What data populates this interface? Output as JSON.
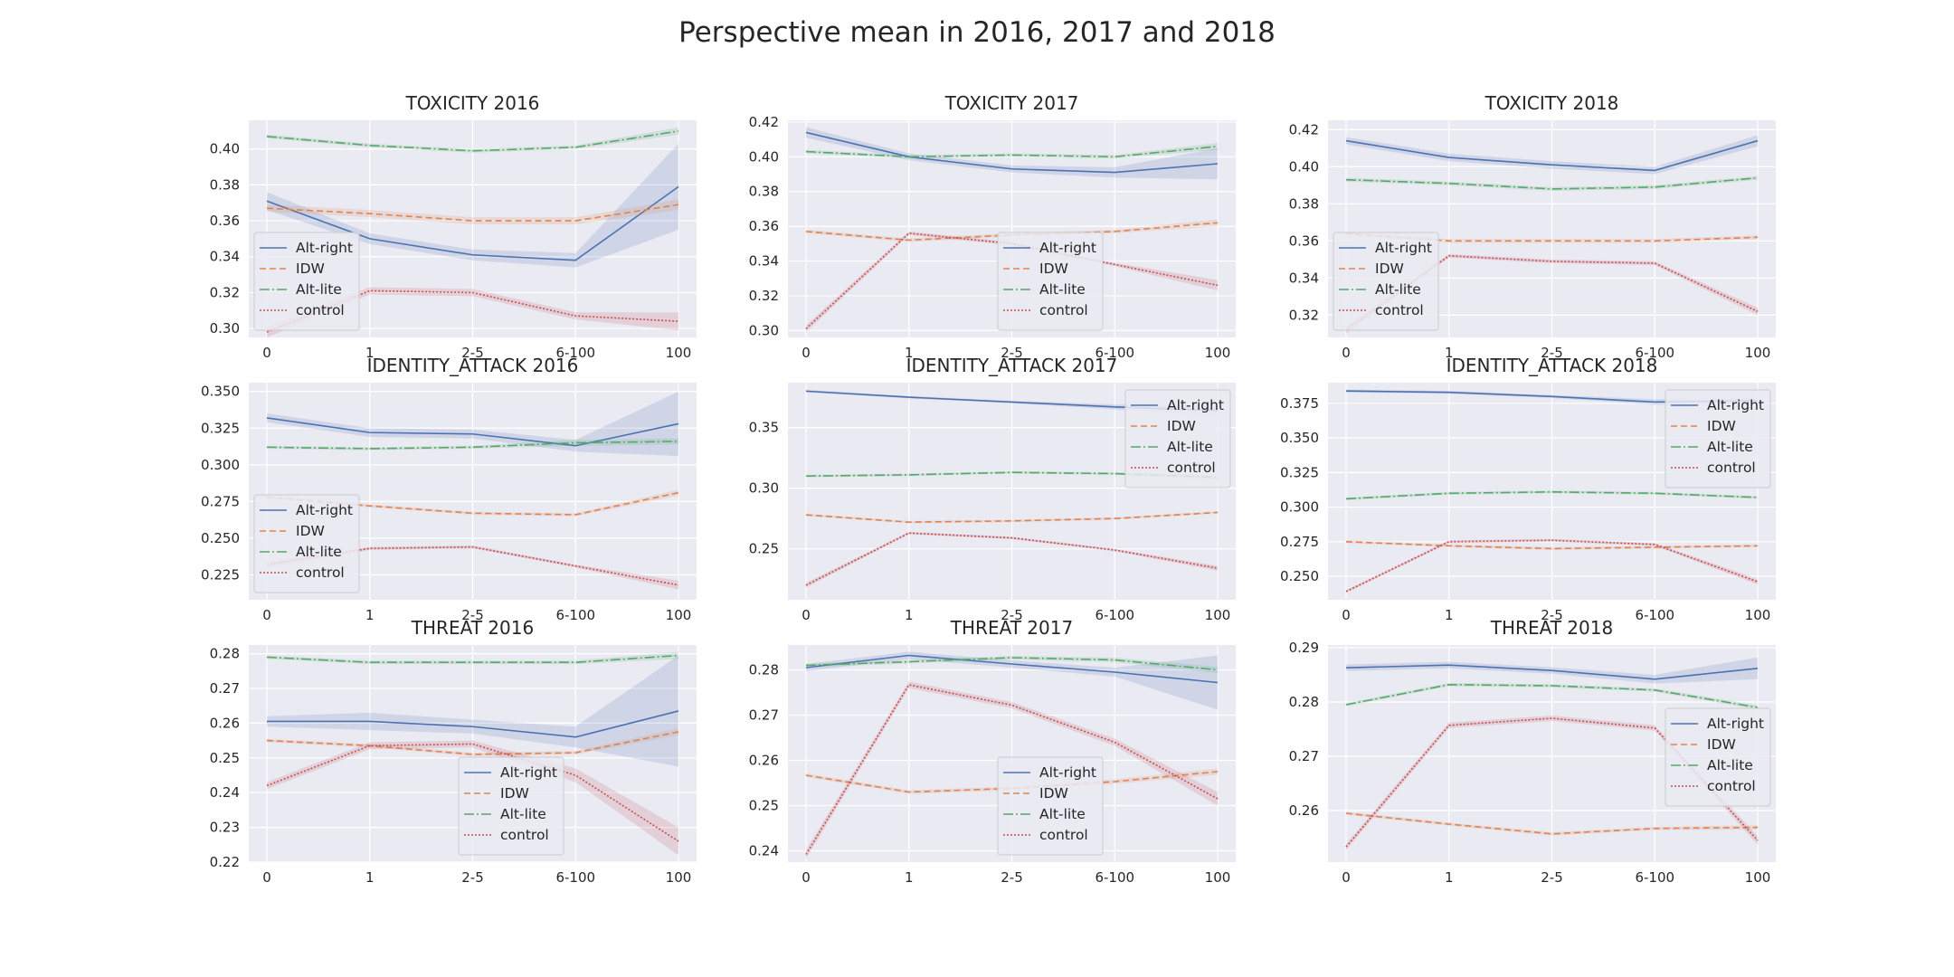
{
  "figure": {
    "title": "Perspective mean in 2016, 2017 and 2018"
  },
  "chart_data": [
    {
      "type": "line",
      "title": "TOXICITY 2016",
      "categories": [
        "0",
        "1",
        "2-5",
        "6-100",
        "100"
      ],
      "yticks": [
        "0.30",
        "0.32",
        "0.34",
        "0.36",
        "0.38",
        "0.40"
      ],
      "ylim": [
        0.295,
        0.416
      ],
      "grid": true,
      "legend": "bottom-left",
      "series": [
        {
          "name": "Alt-right",
          "values": [
            0.371,
            0.35,
            0.341,
            0.338,
            0.379
          ],
          "band": [
            0.005,
            0.003,
            0.003,
            0.004,
            0.024
          ]
        },
        {
          "name": "IDW",
          "values": [
            0.367,
            0.364,
            0.36,
            0.36,
            0.369
          ],
          "band": [
            0.002,
            0.002,
            0.002,
            0.002,
            0.003
          ]
        },
        {
          "name": "Alt-lite",
          "values": [
            0.407,
            0.402,
            0.399,
            0.401,
            0.41
          ],
          "band": [
            0.001,
            0.001,
            0.001,
            0.001,
            0.002
          ]
        },
        {
          "name": "control",
          "values": [
            0.298,
            0.321,
            0.32,
            0.307,
            0.304
          ],
          "band": [
            0.003,
            0.002,
            0.002,
            0.002,
            0.005
          ]
        }
      ]
    },
    {
      "type": "line",
      "title": "TOXICITY 2017",
      "categories": [
        "0",
        "1",
        "2-5",
        "6-100",
        "100"
      ],
      "yticks": [
        "0.30",
        "0.32",
        "0.34",
        "0.36",
        "0.38",
        "0.40",
        "0.42"
      ],
      "ylim": [
        0.296,
        0.421
      ],
      "grid": true,
      "legend": "bottom-center",
      "series": [
        {
          "name": "Alt-right",
          "values": [
            0.414,
            0.4,
            0.393,
            0.391,
            0.396
          ],
          "band": [
            0.003,
            0.002,
            0.002,
            0.003,
            0.009
          ]
        },
        {
          "name": "IDW",
          "values": [
            0.357,
            0.352,
            0.355,
            0.357,
            0.362
          ],
          "band": [
            0.001,
            0.001,
            0.001,
            0.001,
            0.002
          ]
        },
        {
          "name": "Alt-lite",
          "values": [
            0.403,
            0.4,
            0.401,
            0.4,
            0.406
          ],
          "band": [
            0.001,
            0.001,
            0.001,
            0.001,
            0.002
          ]
        },
        {
          "name": "control",
          "values": [
            0.301,
            0.356,
            0.35,
            0.338,
            0.326
          ],
          "band": [
            0.002,
            0.001,
            0.001,
            0.001,
            0.003
          ]
        }
      ]
    },
    {
      "type": "line",
      "title": "TOXICITY 2018",
      "categories": [
        "0",
        "1",
        "2-5",
        "6-100",
        "100"
      ],
      "yticks": [
        "0.32",
        "0.34",
        "0.36",
        "0.38",
        "0.40",
        "0.42"
      ],
      "ylim": [
        0.308,
        0.425
      ],
      "grid": true,
      "legend": "bottom-left",
      "series": [
        {
          "name": "Alt-right",
          "values": [
            0.414,
            0.405,
            0.401,
            0.398,
            0.414
          ],
          "band": [
            0.002,
            0.002,
            0.002,
            0.002,
            0.003
          ]
        },
        {
          "name": "IDW",
          "values": [
            0.364,
            0.36,
            0.36,
            0.36,
            0.362
          ],
          "band": [
            0.001,
            0.001,
            0.001,
            0.001,
            0.001
          ]
        },
        {
          "name": "Alt-lite",
          "values": [
            0.393,
            0.391,
            0.388,
            0.389,
            0.394
          ],
          "band": [
            0.001,
            0.001,
            0.001,
            0.001,
            0.001
          ]
        },
        {
          "name": "control",
          "values": [
            0.312,
            0.352,
            0.349,
            0.348,
            0.322
          ],
          "band": [
            0.002,
            0.001,
            0.001,
            0.001,
            0.002
          ]
        }
      ]
    },
    {
      "type": "line",
      "title": "IDENTITY_ATTACK 2016",
      "categories": [
        "0",
        "1",
        "2-5",
        "6-100",
        "100"
      ],
      "yticks": [
        "0.225",
        "0.250",
        "0.275",
        "0.300",
        "0.325",
        "0.350"
      ],
      "ylim": [
        0.208,
        0.356
      ],
      "grid": true,
      "legend": "bottom-left",
      "series": [
        {
          "name": "Alt-right",
          "values": [
            0.332,
            0.322,
            0.321,
            0.313,
            0.328
          ],
          "band": [
            0.003,
            0.003,
            0.003,
            0.004,
            0.022
          ]
        },
        {
          "name": "IDW",
          "values": [
            0.278,
            0.272,
            0.267,
            0.266,
            0.281
          ],
          "band": [
            0.001,
            0.001,
            0.001,
            0.001,
            0.002
          ]
        },
        {
          "name": "Alt-lite",
          "values": [
            0.312,
            0.311,
            0.312,
            0.315,
            0.316
          ],
          "band": [
            0.001,
            0.001,
            0.001,
            0.002,
            0.002
          ]
        },
        {
          "name": "control",
          "values": [
            0.232,
            0.243,
            0.244,
            0.231,
            0.218
          ],
          "band": [
            0.002,
            0.001,
            0.001,
            0.001,
            0.003
          ]
        }
      ]
    },
    {
      "type": "line",
      "title": "IDENTITY_ATTACK 2017",
      "categories": [
        "0",
        "1",
        "2-5",
        "6-100",
        "100"
      ],
      "yticks": [
        "0.25",
        "0.30",
        "0.35"
      ],
      "ylim": [
        0.208,
        0.387
      ],
      "grid": true,
      "legend": "top-right",
      "series": [
        {
          "name": "Alt-right",
          "values": [
            0.38,
            0.375,
            0.371,
            0.367,
            0.364
          ],
          "band": [
            0.001,
            0.001,
            0.001,
            0.002,
            0.004
          ]
        },
        {
          "name": "IDW",
          "values": [
            0.278,
            0.272,
            0.273,
            0.275,
            0.28
          ],
          "band": [
            0.001,
            0.001,
            0.001,
            0.001,
            0.001
          ]
        },
        {
          "name": "Alt-lite",
          "values": [
            0.31,
            0.311,
            0.313,
            0.312,
            0.309
          ],
          "band": [
            0.001,
            0.001,
            0.001,
            0.001,
            0.002
          ]
        },
        {
          "name": "control",
          "values": [
            0.22,
            0.263,
            0.259,
            0.249,
            0.234
          ],
          "band": [
            0.002,
            0.001,
            0.001,
            0.001,
            0.002
          ]
        }
      ]
    },
    {
      "type": "line",
      "title": "IDENTITY_ATTACK 2018",
      "categories": [
        "0",
        "1",
        "2-5",
        "6-100",
        "100"
      ],
      "yticks": [
        "0.250",
        "0.275",
        "0.300",
        "0.325",
        "0.350",
        "0.375"
      ],
      "ylim": [
        0.233,
        0.39
      ],
      "grid": true,
      "legend": "top-right",
      "series": [
        {
          "name": "Alt-right",
          "values": [
            0.384,
            0.383,
            0.38,
            0.376,
            0.377
          ],
          "band": [
            0.001,
            0.001,
            0.001,
            0.002,
            0.002
          ]
        },
        {
          "name": "IDW",
          "values": [
            0.275,
            0.272,
            0.27,
            0.271,
            0.272
          ],
          "band": [
            0.001,
            0.001,
            0.001,
            0.001,
            0.001
          ]
        },
        {
          "name": "Alt-lite",
          "values": [
            0.306,
            0.31,
            0.311,
            0.31,
            0.307
          ],
          "band": [
            0.001,
            0.001,
            0.001,
            0.001,
            0.001
          ]
        },
        {
          "name": "control",
          "values": [
            0.239,
            0.275,
            0.276,
            0.273,
            0.246
          ],
          "band": [
            0.001,
            0.001,
            0.001,
            0.001,
            0.002
          ]
        }
      ]
    },
    {
      "type": "line",
      "title": "THREAT 2016",
      "categories": [
        "0",
        "1",
        "2-5",
        "6-100",
        "100"
      ],
      "yticks": [
        "0.22",
        "0.23",
        "0.24",
        "0.25",
        "0.26",
        "0.27",
        "0.28"
      ],
      "ylim": [
        0.22,
        0.2825
      ],
      "grid": true,
      "legend": "bottom-center",
      "series": [
        {
          "name": "Alt-right",
          "values": [
            0.2605,
            0.2605,
            0.259,
            0.256,
            0.2635
          ],
          "band": [
            0.0015,
            0.0025,
            0.002,
            0.003,
            0.016
          ]
        },
        {
          "name": "IDW",
          "values": [
            0.255,
            0.2535,
            0.251,
            0.2515,
            0.2575
          ],
          "band": [
            0.0005,
            0.0005,
            0.0005,
            0.0005,
            0.001
          ]
        },
        {
          "name": "Alt-lite",
          "values": [
            0.279,
            0.2775,
            0.2775,
            0.2775,
            0.2795
          ],
          "band": [
            0.0005,
            0.0005,
            0.0005,
            0.0005,
            0.001
          ]
        },
        {
          "name": "control",
          "values": [
            0.242,
            0.2535,
            0.254,
            0.245,
            0.226
          ],
          "band": [
            0.001,
            0.001,
            0.001,
            0.002,
            0.004
          ]
        }
      ]
    },
    {
      "type": "line",
      "title": "THREAT 2017",
      "categories": [
        "0",
        "1",
        "2-5",
        "6-100",
        "100"
      ],
      "yticks": [
        "0.24",
        "0.25",
        "0.26",
        "0.27",
        "0.28"
      ],
      "ylim": [
        0.2375,
        0.2855
      ],
      "grid": true,
      "legend": "bottom-center",
      "series": [
        {
          "name": "Alt-right",
          "values": [
            0.2805,
            0.2832,
            0.2813,
            0.2795,
            0.2772
          ],
          "band": [
            0.0008,
            0.0008,
            0.0008,
            0.001,
            0.006
          ]
        },
        {
          "name": "IDW",
          "values": [
            0.2567,
            0.253,
            0.2538,
            0.2553,
            0.2575
          ],
          "band": [
            0.0004,
            0.0004,
            0.0004,
            0.0005,
            0.0007
          ]
        },
        {
          "name": "Alt-lite",
          "values": [
            0.281,
            0.2818,
            0.2827,
            0.2822,
            0.28
          ],
          "band": [
            0.0004,
            0.0004,
            0.0004,
            0.0005,
            0.0007
          ]
        },
        {
          "name": "control",
          "values": [
            0.2392,
            0.2767,
            0.2722,
            0.264,
            0.2515
          ],
          "band": [
            0.001,
            0.0007,
            0.0007,
            0.0008,
            0.0015
          ]
        }
      ]
    },
    {
      "type": "line",
      "title": "THREAT 2018",
      "categories": [
        "0",
        "1",
        "2-5",
        "6-100",
        "100"
      ],
      "yticks": [
        "0.26",
        "0.27",
        "0.28",
        "0.29"
      ],
      "ylim": [
        0.2505,
        0.2905
      ],
      "grid": true,
      "legend": "right",
      "series": [
        {
          "name": "Alt-right",
          "values": [
            0.2863,
            0.2868,
            0.2858,
            0.2842,
            0.2862
          ],
          "band": [
            0.0006,
            0.0006,
            0.0006,
            0.0008,
            0.002
          ]
        },
        {
          "name": "IDW",
          "values": [
            0.2595,
            0.2575,
            0.2557,
            0.2567,
            0.2569
          ],
          "band": [
            0.0003,
            0.0003,
            0.0003,
            0.0003,
            0.0004
          ]
        },
        {
          "name": "Alt-lite",
          "values": [
            0.2795,
            0.2832,
            0.283,
            0.2822,
            0.279
          ],
          "band": [
            0.0003,
            0.0003,
            0.0003,
            0.0003,
            0.0004
          ]
        },
        {
          "name": "control",
          "values": [
            0.2533,
            0.2757,
            0.277,
            0.2752,
            0.2545
          ],
          "band": [
            0.0006,
            0.0005,
            0.0005,
            0.0005,
            0.0008
          ]
        }
      ]
    }
  ],
  "styles": {
    "Alt-right": {
      "color": "#4c72b0",
      "dash": "none"
    },
    "IDW": {
      "color": "#dd8452",
      "dash": "7,4"
    },
    "Alt-lite": {
      "color": "#55a868",
      "dash": "11,3,2,3"
    },
    "control": {
      "color": "#c44e52",
      "dash": "2,2"
    },
    "panel_bg": "#eaeaf2",
    "grid": "#ffffff"
  }
}
